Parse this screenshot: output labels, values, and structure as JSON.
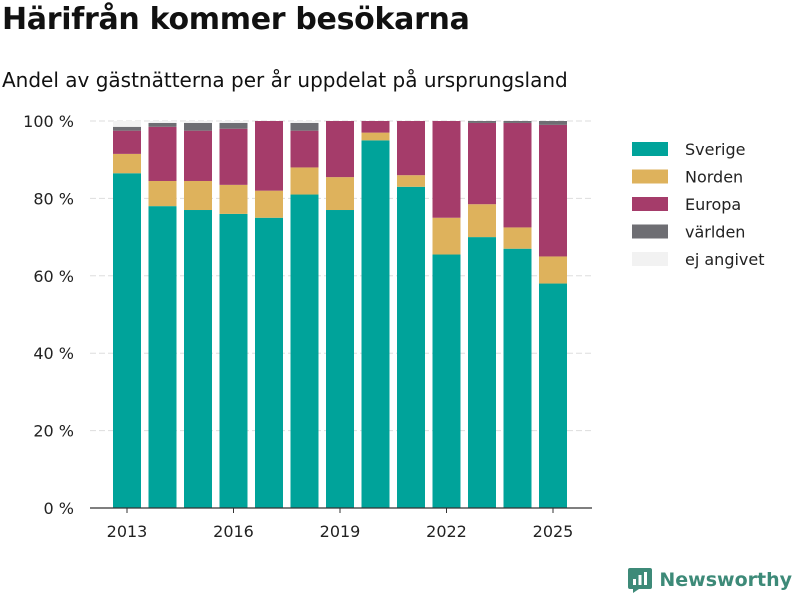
{
  "header": {
    "title": "Härifrån kommer besökarna",
    "subtitle": "Andel av gästnätterna per år uppdelat på ursprungsland"
  },
  "brand": {
    "name": "Newsworthy",
    "icon": "newsworthy-logo-icon"
  },
  "colors": {
    "Sverige": "#00a39a",
    "Norden": "#deb25c",
    "Europa": "#a53c6a",
    "världen": "#6e6e73",
    "ej angivet": "#f2f2f2",
    "brand": "#3d8a78"
  },
  "chart_data": {
    "type": "bar",
    "stacked": true,
    "categories": [
      "2013",
      "2014",
      "2015",
      "2016",
      "2017",
      "2018",
      "2019",
      "2020",
      "2021",
      "2022",
      "2023",
      "2024",
      "2025"
    ],
    "series": [
      {
        "name": "Sverige",
        "values": [
          86.5,
          78,
          77,
          76,
          75,
          81,
          77,
          95,
          83,
          65.5,
          70,
          67,
          58
        ]
      },
      {
        "name": "Norden",
        "values": [
          5,
          6.5,
          7.5,
          7.5,
          7,
          7,
          8.5,
          2,
          3,
          9.5,
          8.5,
          5.5,
          7
        ]
      },
      {
        "name": "Europa",
        "values": [
          6,
          14,
          13,
          14.5,
          18,
          9.5,
          14.5,
          3,
          14,
          25,
          21,
          27,
          34
        ]
      },
      {
        "name": "världen",
        "values": [
          1,
          1,
          2,
          1.5,
          0,
          2,
          0,
          0,
          0,
          0,
          0.5,
          0.5,
          1
        ]
      },
      {
        "name": "ej angivet",
        "values": [
          1.5,
          0.5,
          0.5,
          0.5,
          0,
          0.5,
          0,
          0,
          0,
          0,
          0,
          0,
          0
        ]
      }
    ],
    "ylim": [
      0,
      100
    ],
    "yticks": [
      0,
      20,
      40,
      60,
      80,
      100
    ],
    "ytick_labels": [
      "0 %",
      "20 %",
      "40 %",
      "60 %",
      "80 %",
      "100 %"
    ],
    "xtick_labels": [
      "2013",
      "2016",
      "2019",
      "2022",
      "2025"
    ],
    "grid": true,
    "legend_position": "right"
  }
}
